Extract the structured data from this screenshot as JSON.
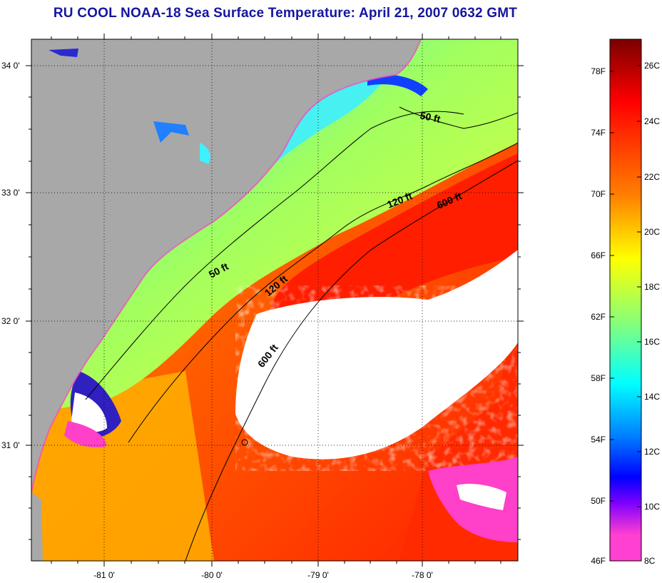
{
  "title": "RU COOL  NOAA-18  Sea Surface Temperature:  April 21, 2007 0632 GMT",
  "map": {
    "lat_labels": [
      "34 0'",
      "33 0'",
      "32 0'",
      "31 0'"
    ],
    "lon_labels": [
      "-81 0'",
      "-80 0'",
      "-79 0'",
      "-78 0'"
    ],
    "contour_labels": [
      {
        "text": "50 ft",
        "angle": 12
      },
      {
        "text": "120 ft",
        "angle": -22
      },
      {
        "text": "600 ft",
        "angle": -24
      },
      {
        "text": "50 ft",
        "angle": -28
      },
      {
        "text": "120 ft",
        "angle": -40
      },
      {
        "text": "600 ft",
        "angle": -52
      }
    ],
    "colors": {
      "land": "#a8a8a8",
      "cloud": "#ffffff",
      "warm_water": "#ff2a00",
      "gulf_stream": "#ff1a00",
      "shelf_water": "#a8ff55",
      "nearshore_water": "#22e8ff"
    }
  },
  "colorbar": {
    "fahrenheit_labels": [
      "78F",
      "74F",
      "70F",
      "66F",
      "62F",
      "58F",
      "54F",
      "50F",
      "46F"
    ],
    "celsius_labels": [
      "26C",
      "24C",
      "22C",
      "20C",
      "18C",
      "16C",
      "14C",
      "12C",
      "10C",
      "8C"
    ],
    "gradient": [
      "#800000",
      "#ff0000",
      "#ff8000",
      "#ffff00",
      "#80ff80",
      "#00ffff",
      "#0080ff",
      "#0000ff",
      "#8000ff",
      "#ff40c0"
    ]
  }
}
